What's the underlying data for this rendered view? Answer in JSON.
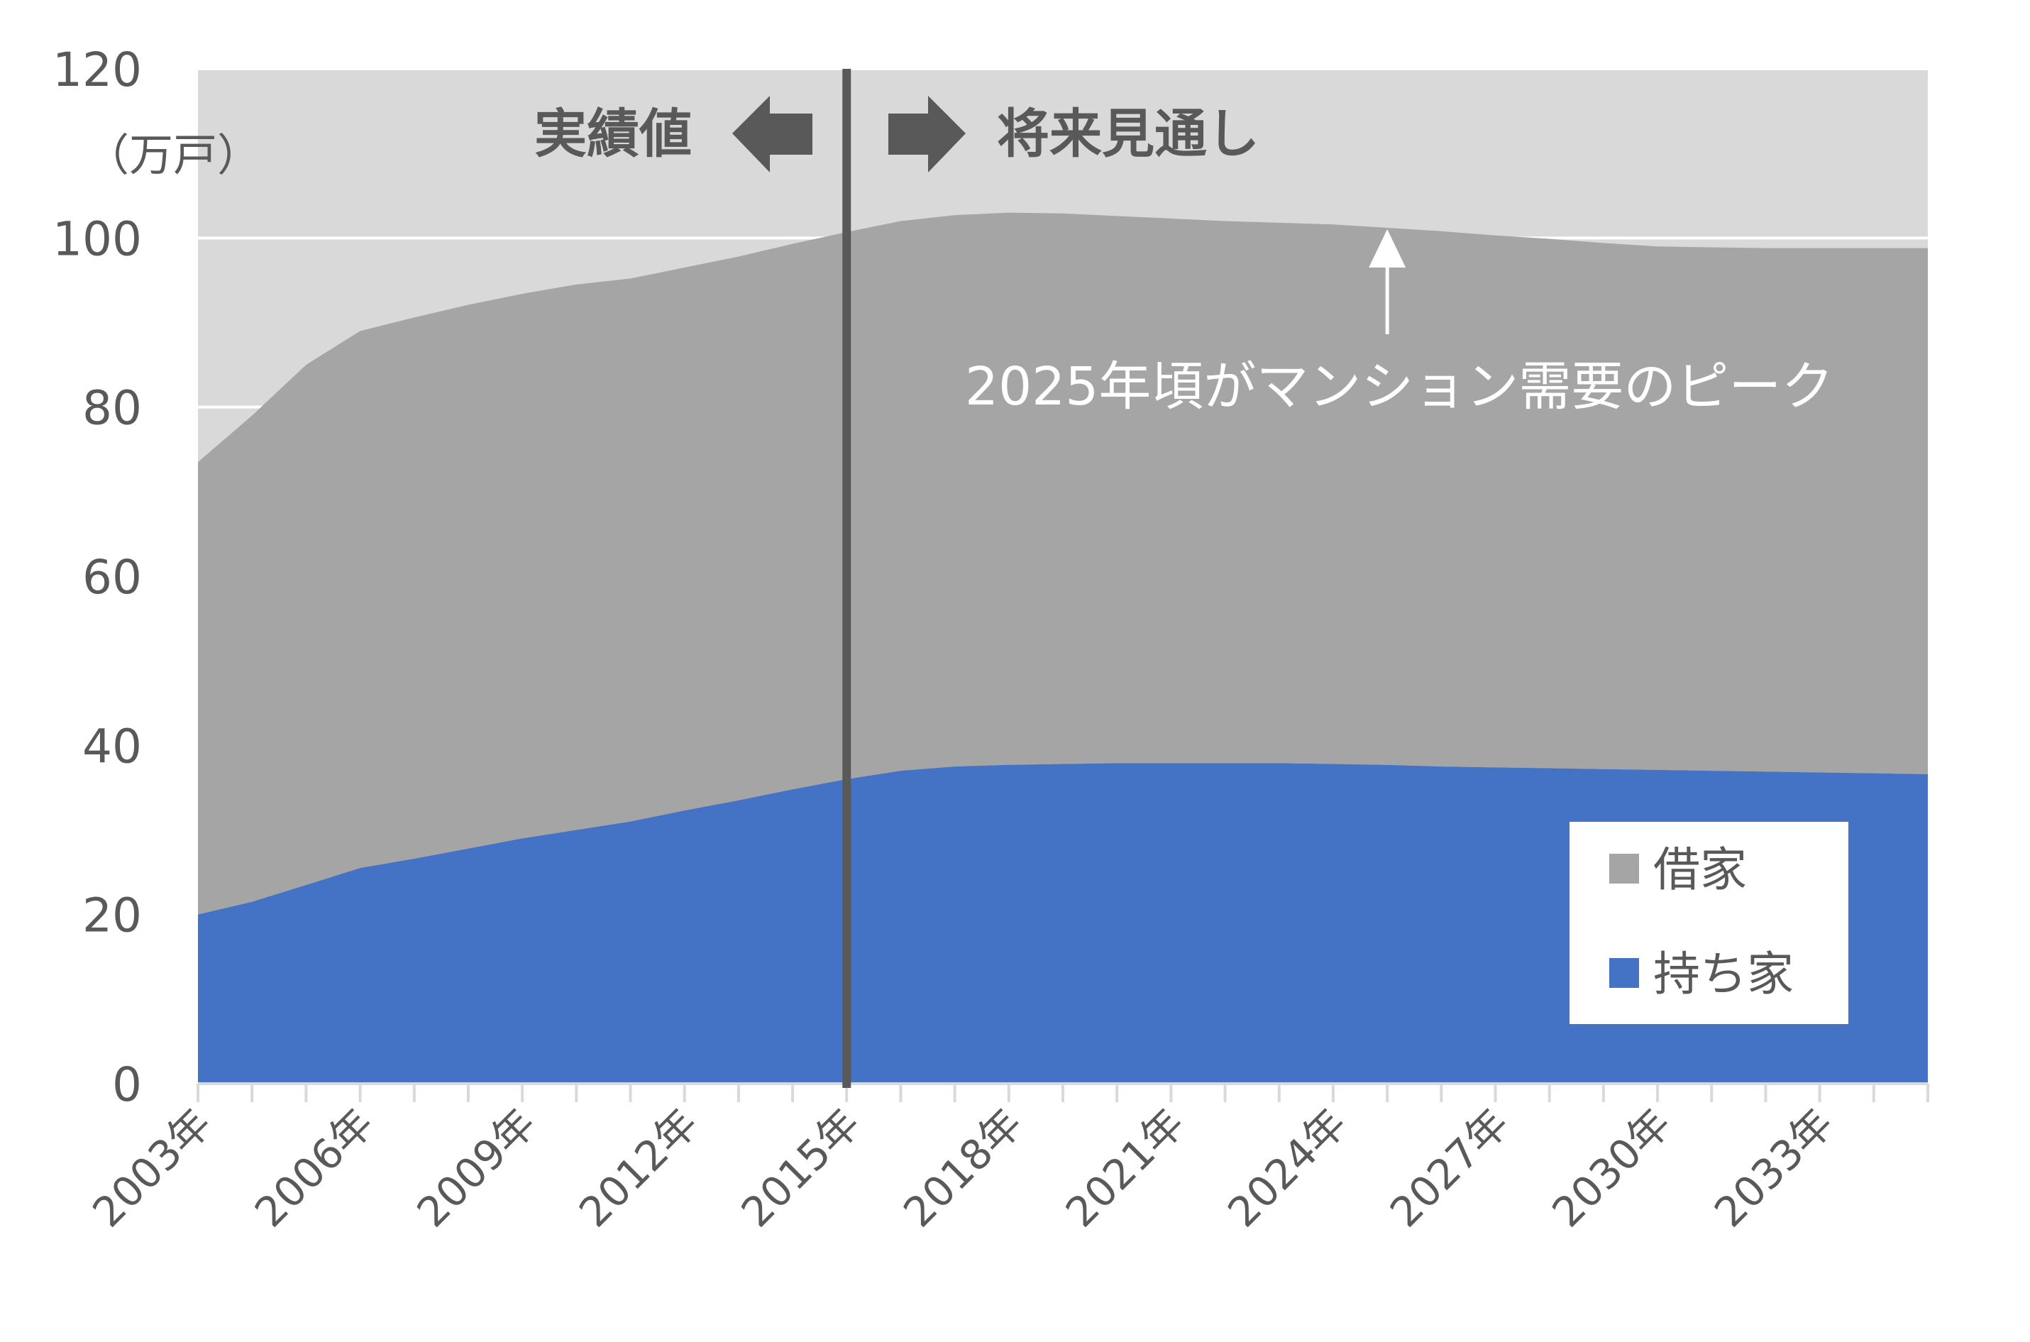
{
  "chart_data": {
    "type": "area",
    "stacked": true,
    "y_unit": "（万戸）",
    "ylim": [
      0,
      120
    ],
    "y_ticks": [
      0,
      20,
      40,
      60,
      80,
      100,
      120
    ],
    "x": [
      "2003年",
      "2004年",
      "2005年",
      "2006年",
      "2007年",
      "2008年",
      "2009年",
      "2010年",
      "2011年",
      "2012年",
      "2013年",
      "2014年",
      "2015年",
      "2016年",
      "2017年",
      "2018年",
      "2019年",
      "2020年",
      "2021年",
      "2022年",
      "2023年",
      "2024年",
      "2025年",
      "2026年",
      "2027年",
      "2028年",
      "2029年",
      "2030年",
      "2031年",
      "2032年",
      "2033年",
      "2034年",
      "2035年"
    ],
    "x_tick_labels": [
      "2003年",
      "2006年",
      "2009年",
      "2012年",
      "2015年",
      "2018年",
      "2021年",
      "2024年",
      "2027年",
      "2030年",
      "2033年"
    ],
    "series": [
      {
        "name": "持ち家",
        "color": "#4472C4",
        "values": [
          20.0,
          21.5,
          23.5,
          25.5,
          26.6,
          27.8,
          29.0,
          30.0,
          31.0,
          32.3,
          33.5,
          34.8,
          36.0,
          37.0,
          37.5,
          37.7,
          37.8,
          37.9,
          37.9,
          37.9,
          37.9,
          37.8,
          37.7,
          37.5,
          37.4,
          37.3,
          37.2,
          37.1,
          37.0,
          36.9,
          36.8,
          36.7,
          36.6
        ]
      },
      {
        "name": "借家",
        "color": "#A5A5A5",
        "values": [
          53.5,
          57.5,
          61.5,
          63.5,
          64.0,
          64.3,
          64.4,
          64.5,
          64.2,
          64.2,
          64.3,
          64.5,
          64.7,
          65.0,
          65.2,
          65.3,
          65.1,
          64.7,
          64.4,
          64.1,
          63.9,
          63.8,
          63.5,
          63.3,
          62.9,
          62.6,
          62.2,
          61.9,
          61.9,
          61.9,
          62.0,
          62.1,
          62.2
        ]
      }
    ],
    "divider_at": "2015年",
    "region_left_label": "実績値",
    "region_right_label": "将来見通し",
    "peak_annotation": "2025年頃がマンション需要のピーク",
    "peak_at": "2025年",
    "background_color": "#D9D9D9",
    "gridlines": true,
    "legend_position": "bottom-right"
  }
}
